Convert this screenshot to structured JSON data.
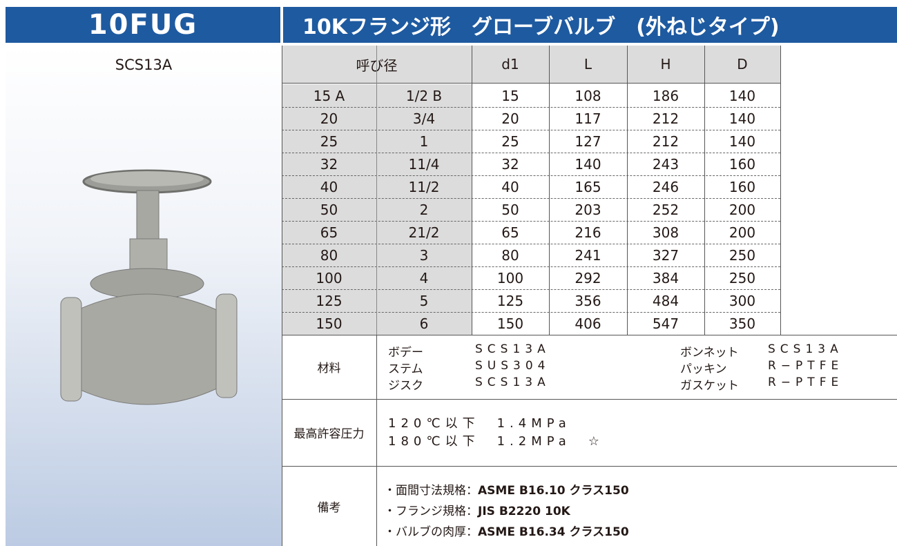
{
  "header": {
    "model": "10FUG",
    "title": "10Kフランジ形　グローブバルブ　(外ねじタイプ)"
  },
  "material_label": "SCS13A",
  "table": {
    "columns": [
      "呼び径",
      "d1",
      "L",
      "H",
      "D"
    ],
    "rows": [
      [
        "15 A",
        "1/2 B",
        "15",
        "108",
        "186",
        "140"
      ],
      [
        "20",
        "3/4",
        "20",
        "117",
        "212",
        "140"
      ],
      [
        "25",
        "1",
        "25",
        "127",
        "212",
        "140"
      ],
      [
        "32",
        "11/4",
        "32",
        "140",
        "243",
        "160"
      ],
      [
        "40",
        "11/2",
        "40",
        "165",
        "246",
        "160"
      ],
      [
        "50",
        "2",
        "50",
        "203",
        "252",
        "200"
      ],
      [
        "65",
        "21/2",
        "65",
        "216",
        "308",
        "200"
      ],
      [
        "80",
        "3",
        "80",
        "241",
        "327",
        "250"
      ],
      [
        "100",
        "4",
        "100",
        "292",
        "384",
        "250"
      ],
      [
        "125",
        "5",
        "125",
        "356",
        "484",
        "300"
      ],
      [
        "150",
        "6",
        "150",
        "406",
        "547",
        "350"
      ]
    ]
  },
  "materials": {
    "label": "材料",
    "items": [
      {
        "part": "ボデー",
        "material": "SCS13A"
      },
      {
        "part": "ステム",
        "material": "SUS304"
      },
      {
        "part": "ジスク",
        "material": "SCS13A"
      },
      {
        "part": "ボンネット",
        "material": "SCS13A"
      },
      {
        "part": "パッキン",
        "material": "R−PTFE"
      },
      {
        "part": "ガスケット",
        "material": "R−PTFE"
      }
    ]
  },
  "pressure": {
    "label": "最高許容圧力",
    "lines": [
      "120℃以下　1.4MPa",
      "180℃以下　1.2MPa　☆"
    ]
  },
  "notes": {
    "label": "備考",
    "items": [
      {
        "label": "・面間寸法規格：",
        "value": "ASME B16.10 クラス150"
      },
      {
        "label": "・フランジ規格：",
        "value": "JIS B2220 10K"
      },
      {
        "label": "・バルブの肉厚：",
        "value": "ASME B16.34 クラス150"
      }
    ]
  }
}
